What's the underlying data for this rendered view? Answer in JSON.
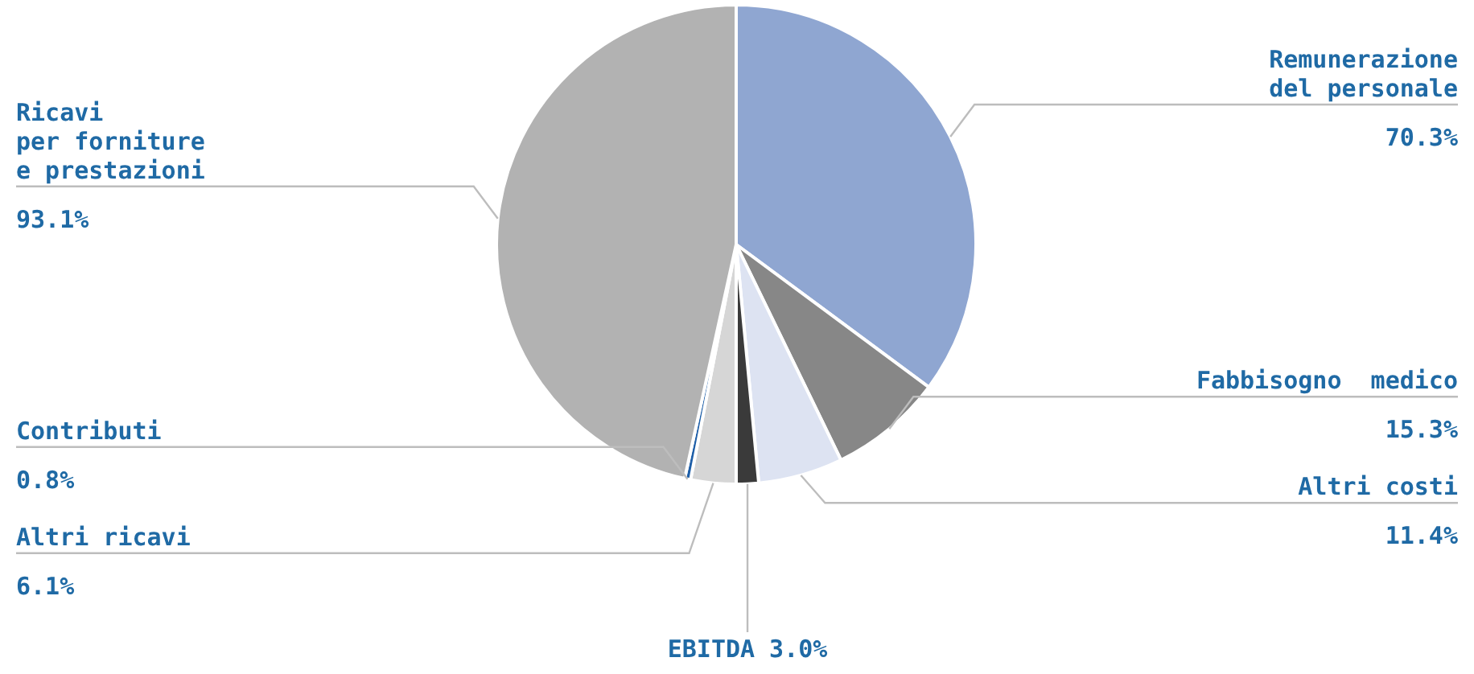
{
  "chart_data": {
    "type": "pie",
    "categories": [
      "Remunerazione\ndel personale",
      "Fabbisogno  medico",
      "Altri costi",
      "EBITDA",
      "Altri ricavi",
      "Contributi",
      "Ricavi\nper forniture\ne prestazioni"
    ],
    "values": [
      70.3,
      15.3,
      11.4,
      3.0,
      6.1,
      0.8,
      93.1
    ],
    "value_labels": [
      "70.3%",
      "15.3%",
      "11.4%",
      "3.0%",
      "6.1%",
      "0.8%",
      "93.1%"
    ],
    "colors": [
      "#8fa6d1",
      "#878787",
      "#dde3f2",
      "#3a3a3a",
      "#d6d6d6",
      "#1f5fa8",
      "#b2b2b2"
    ],
    "legend": false
  }
}
